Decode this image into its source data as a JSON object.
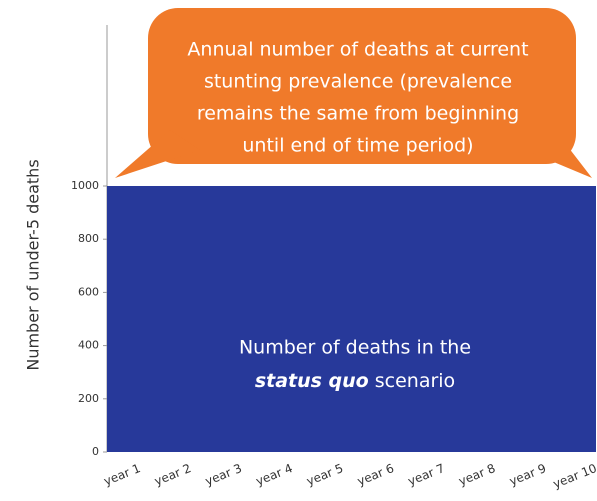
{
  "chart_data": {
    "type": "area",
    "categories": [
      "year 1",
      "year 2",
      "year 3",
      "year 4",
      "year 5",
      "year 6",
      "year 7",
      "year 8",
      "year 9",
      "year 10"
    ],
    "values": [
      1000,
      1000,
      1000,
      1000,
      1000,
      1000,
      1000,
      1000,
      1000,
      1000
    ],
    "color": "#27399a",
    "ylim": [
      0,
      1000
    ],
    "yticks": [
      0,
      200,
      400,
      600,
      800,
      1000
    ],
    "y_label": "Number of under-5 deaths",
    "annotation": [
      "Annual number of deaths at current",
      "stunting prevalence (prevalence",
      "remains the same from beginning",
      "until end of time period)"
    ],
    "area_label": [
      "Number of deaths in the",
      "status quo",
      "scenario"
    ]
  }
}
